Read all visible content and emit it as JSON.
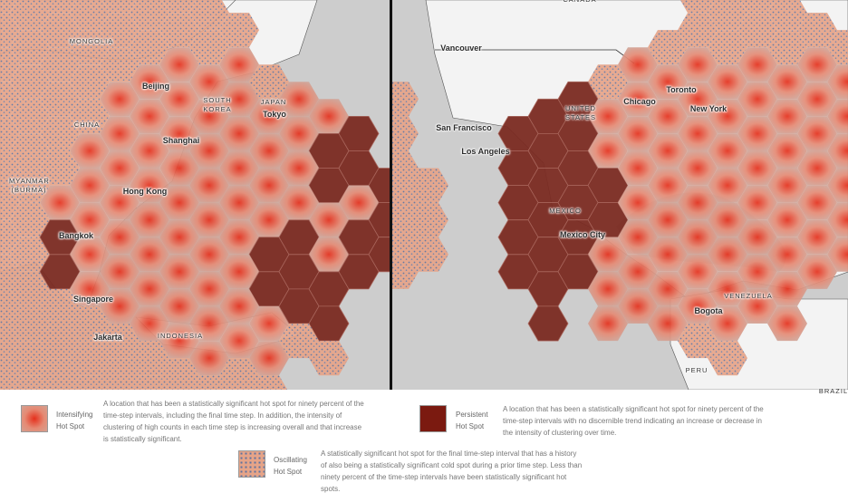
{
  "map_left": {
    "labels": [
      "MONGOLIA",
      "Beijing",
      "CHINA",
      "SOUTH KOREA",
      "JAPAN",
      "Tokyo",
      "Shanghai",
      "MYANMAR (BURMA)",
      "Hong Kong",
      "Bangkok",
      "Singapore",
      "Jakarta",
      "INDONESIA"
    ]
  },
  "map_right": {
    "labels": [
      "CANADA",
      "Vancouver",
      "San Francisco",
      "Los Angeles",
      "UNITED STATES",
      "Chicago",
      "Toronto",
      "New York",
      "MEXICO",
      "Mexico City",
      "VENEZUELA",
      "Bogota",
      "PERU",
      "BRAZIL"
    ]
  },
  "legend": [
    {
      "label": "Intensifying Hot Spot",
      "description": "A location that has been a statistically significant hot spot for ninety percent of the time-step intervals, including the final time step. In addition, the intensity of clustering of high counts in each time step is increasing overall and that increase is statistically significant."
    },
    {
      "label": "Persistent Hot Spot",
      "description": "A location that has been a statistically significant hot spot for ninety percent of the time-step intervals with no discernible trend indicating an increase or decrease in the intensity of clustering over time."
    },
    {
      "label": "Oscillating Hot Spot",
      "description": "A statistically significant hot spot for the final time-step interval that has a history of also being a statistically significant cold spot during a prior time step. Less than ninety percent of the time-step intervals have been statistically significant hot spots."
    }
  ]
}
